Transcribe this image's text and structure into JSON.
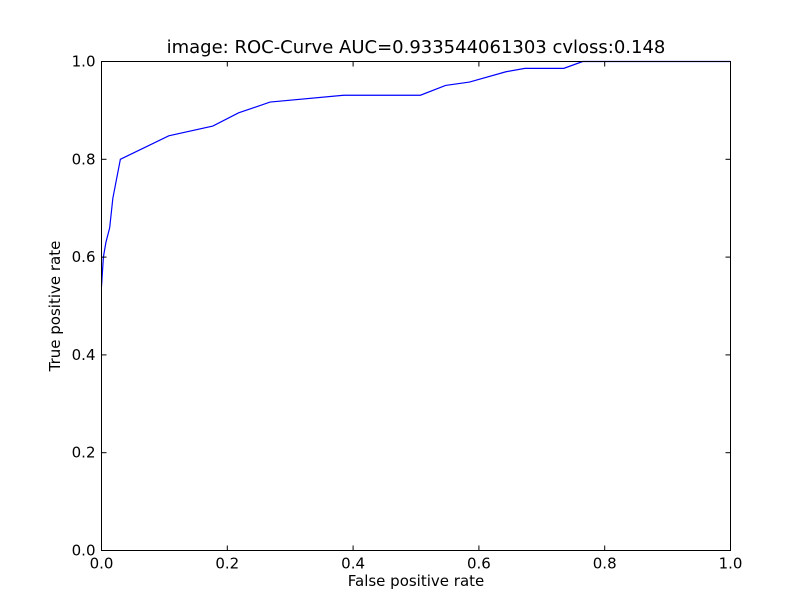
{
  "chart_data": {
    "type": "line",
    "title": "image: ROC-Curve AUC=0.933544061303 cvloss:0.148",
    "xlabel": "False positive rate",
    "ylabel": "True positive rate",
    "xlim": [
      0.0,
      1.0
    ],
    "ylim": [
      0.0,
      1.0
    ],
    "xticks": [
      "0.0",
      "0.2",
      "0.4",
      "0.6",
      "0.8",
      "1.0"
    ],
    "yticks": [
      "0.0",
      "0.2",
      "0.4",
      "0.6",
      "0.8",
      "1.0"
    ],
    "grid": false,
    "series": [
      {
        "color": "#0000ff",
        "x": [
          0.0,
          0.003,
          0.007,
          0.013,
          0.018,
          0.03,
          0.107,
          0.177,
          0.218,
          0.268,
          0.385,
          0.507,
          0.547,
          0.585,
          0.643,
          0.673,
          0.735,
          0.765,
          1.0
        ],
        "y": [
          0.54,
          0.6,
          0.63,
          0.66,
          0.72,
          0.8,
          0.848,
          0.868,
          0.895,
          0.917,
          0.931,
          0.931,
          0.951,
          0.958,
          0.979,
          0.986,
          0.986,
          1.0,
          1.0
        ]
      }
    ]
  }
}
